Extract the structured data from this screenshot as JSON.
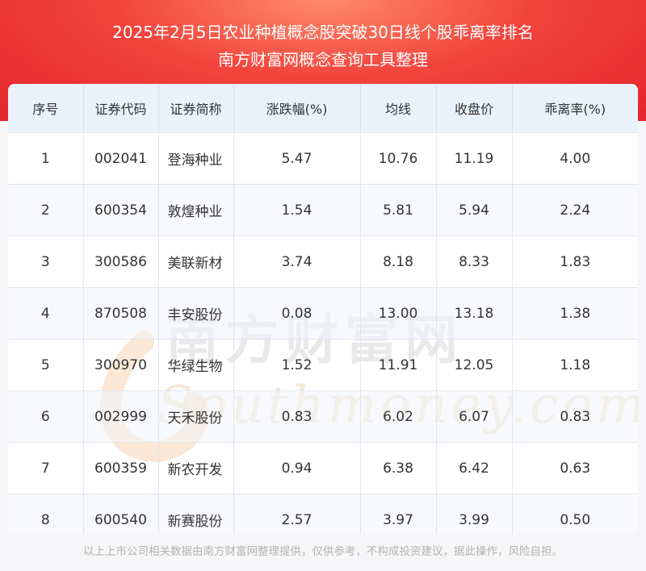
{
  "header": {
    "title_line1": "2025年2月5日农业种植概念股突破30日线个股乖离率排名",
    "title_line2": "南方财富网概念查询工具整理"
  },
  "table": {
    "columns": [
      "序号",
      "证券代码",
      "证券简称",
      "涨跌幅(%)",
      "均线",
      "收盘价",
      "乖离率(%)"
    ],
    "rows": [
      [
        "1",
        "002041",
        "登海种业",
        "5.47",
        "10.76",
        "11.19",
        "4.00"
      ],
      [
        "2",
        "600354",
        "敦煌种业",
        "1.54",
        "5.81",
        "5.94",
        "2.24"
      ],
      [
        "3",
        "300586",
        "美联新材",
        "3.74",
        "8.18",
        "8.33",
        "1.83"
      ],
      [
        "4",
        "870508",
        "丰安股份",
        "0.08",
        "13.00",
        "13.18",
        "1.38"
      ],
      [
        "5",
        "300970",
        "华绿生物",
        "1.52",
        "11.91",
        "12.05",
        "1.18"
      ],
      [
        "6",
        "002999",
        "天禾股份",
        "0.83",
        "6.02",
        "6.07",
        "0.83"
      ],
      [
        "7",
        "600359",
        "新农开发",
        "0.94",
        "6.38",
        "6.42",
        "0.63"
      ],
      [
        "8",
        "600540",
        "新赛股份",
        "2.57",
        "3.97",
        "3.99",
        "0.50"
      ]
    ]
  },
  "watermark": {
    "cn": "南方财富网",
    "en": "Southmoney.com"
  },
  "footer": {
    "disclaimer": "以上上市公司相关数据由南方财富网整理提供，仅供参考，不构成投资建议，据此操作，风险自担。"
  },
  "colors": {
    "banner": "#e4262c",
    "header_row": "#e9f1fb",
    "watermark": "#f0c9a6"
  }
}
